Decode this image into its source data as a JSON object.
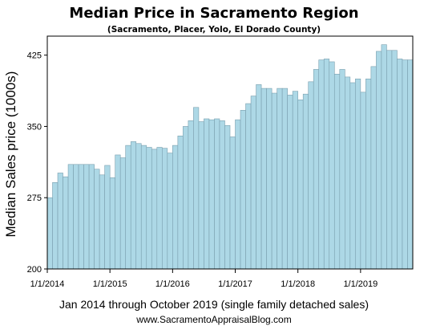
{
  "chart_data": {
    "type": "bar",
    "title": "Median Price in Sacramento Region",
    "subtitle": "(Sacramento, Placer, Yolo, El Dorado County)",
    "ylabel": "Median Sales price (1000s)",
    "xlabel": "Jan 2014 through October 2019 (single family detached sales)",
    "source": "www.SacramentoAppraisalBlog.com",
    "ylim": [
      200,
      445
    ],
    "yticks": [
      200,
      275,
      350,
      425
    ],
    "xtick_labels": [
      "1/1/2014",
      "1/1/2015",
      "1/1/2016",
      "1/1/2017",
      "1/1/2018",
      "1/1/2019"
    ],
    "grid": false,
    "start_month": "2014-01",
    "bar_color": "#add8e6",
    "bar_edge_color": "#7a9fae",
    "values": [
      275,
      291,
      301,
      297,
      310,
      310,
      310,
      310,
      310,
      305,
      299,
      309,
      296,
      320,
      317,
      330,
      334,
      332,
      330,
      328,
      326,
      328,
      327,
      322,
      330,
      340,
      350,
      356,
      370,
      355,
      358,
      357,
      358,
      356,
      351,
      339,
      357,
      367,
      374,
      382,
      394,
      390,
      390,
      385,
      390,
      390,
      383,
      387,
      378,
      384,
      397,
      410,
      420,
      421,
      418,
      405,
      410,
      402,
      396,
      400,
      386,
      400,
      413,
      429,
      436,
      430,
      430,
      421,
      420,
      420
    ]
  }
}
